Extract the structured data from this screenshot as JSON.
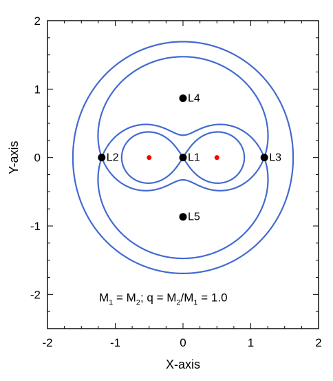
{
  "chart_data": {
    "type": "scatter",
    "xlabel": "X-axis",
    "ylabel": "Y-axis",
    "xlim": [
      -2,
      2
    ],
    "ylim": [
      -2.5,
      2
    ],
    "x_ticks": [
      -2,
      -1,
      0,
      1,
      2
    ],
    "y_ticks": [
      -2,
      -1,
      0,
      1,
      2
    ],
    "x_tick_labels": [
      "-2",
      "-1",
      "0",
      "1",
      "2"
    ],
    "y_tick_labels": [
      "-2",
      "-1",
      "0",
      "1",
      "2"
    ],
    "mass_ratio": 1.0,
    "masses": [
      {
        "x": -0.5,
        "y": 0,
        "color": "#ff0000"
      },
      {
        "x": 0.5,
        "y": 0,
        "color": "#ff0000"
      }
    ],
    "lagrange_points": [
      {
        "label": "L1",
        "x": 0.0,
        "y": 0.0
      },
      {
        "label": "L2",
        "x": -1.2,
        "y": 0.0
      },
      {
        "label": "L3",
        "x": 1.2,
        "y": 0.0
      },
      {
        "label": "L4",
        "x": 0.0,
        "y": 0.866
      },
      {
        "label": "L5",
        "x": 0.0,
        "y": -0.866
      }
    ],
    "contour_color": "#4169d1",
    "annotation": {
      "parts": [
        "M",
        "1",
        " = M",
        "2",
        ";   q = M",
        "2",
        "/M",
        "1",
        " = 1.0"
      ]
    }
  }
}
